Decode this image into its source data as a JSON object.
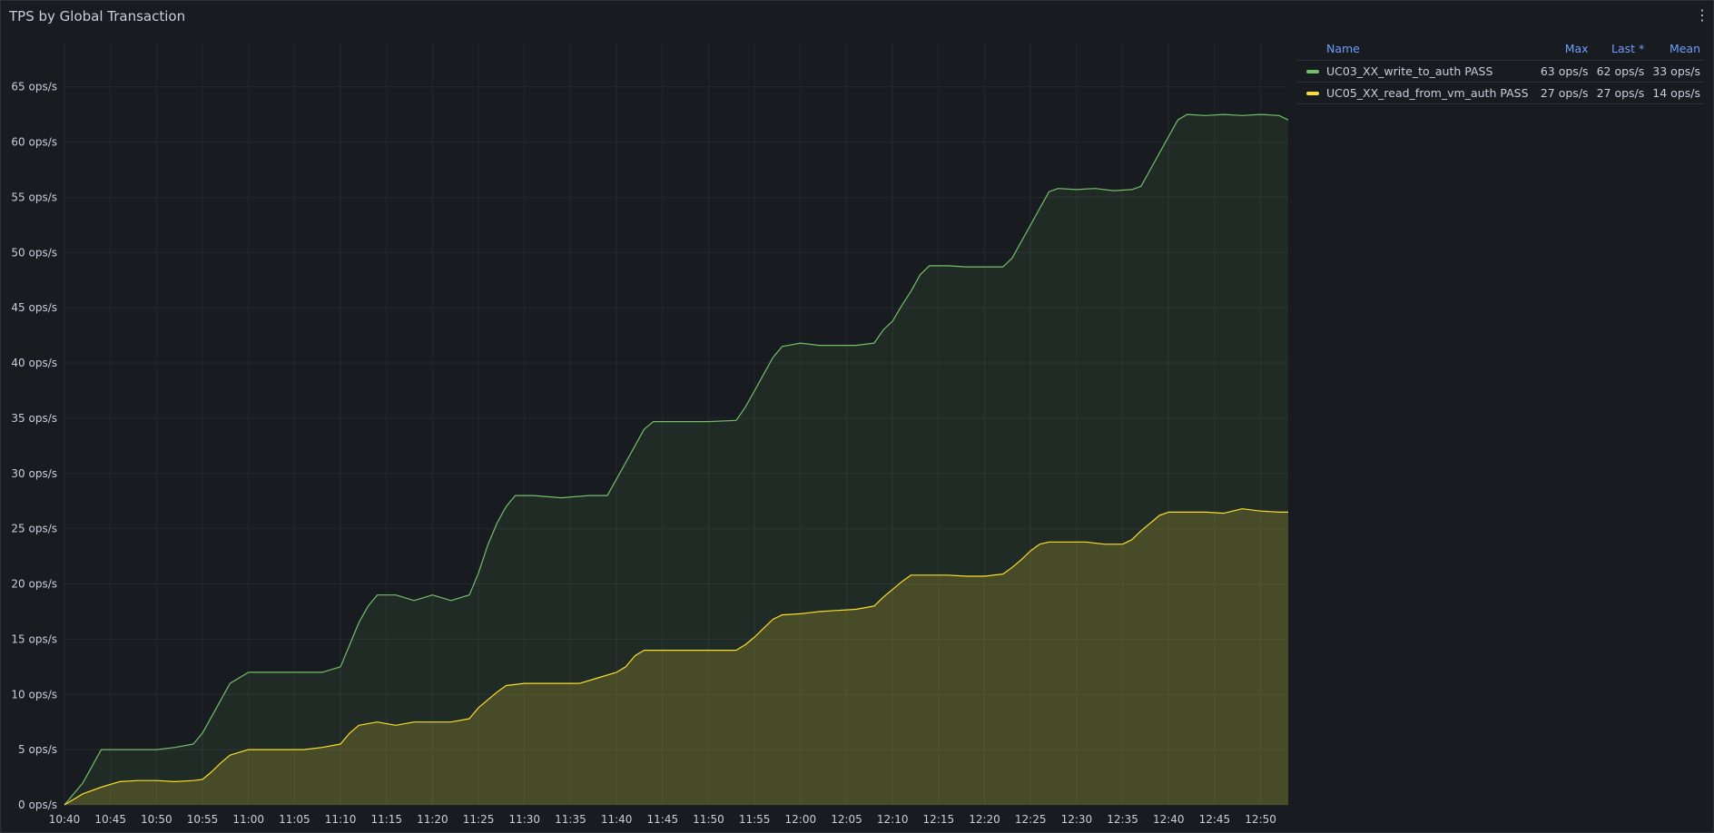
{
  "panel": {
    "title": "TPS by Global Transaction",
    "menu_icon": "⋮"
  },
  "legend": {
    "headers": {
      "name": "Name",
      "max": "Max",
      "last": "Last *",
      "mean": "Mean"
    },
    "rows": [
      {
        "name": "UC03_XX_write_to_auth PASS",
        "max": "63 ops/s",
        "last": "62 ops/s",
        "mean": "33 ops/s",
        "color": "#73bf69"
      },
      {
        "name": "UC05_XX_read_from_vm_auth PASS",
        "max": "27 ops/s",
        "last": "27 ops/s",
        "mean": "14 ops/s",
        "color": "#fade2a"
      }
    ]
  },
  "chart_data": {
    "type": "area",
    "title": "TPS by Global Transaction",
    "xlabel": "",
    "ylabel": "",
    "unit": "ops/s",
    "ylim": [
      0,
      69
    ],
    "xlim": [
      "10:40",
      "12:53"
    ],
    "grid": true,
    "legend_placement": "right",
    "y_ticks": [
      "0 ops/s",
      "5 ops/s",
      "10 ops/s",
      "15 ops/s",
      "20 ops/s",
      "25 ops/s",
      "30 ops/s",
      "35 ops/s",
      "40 ops/s",
      "45 ops/s",
      "50 ops/s",
      "55 ops/s",
      "60 ops/s",
      "65 ops/s"
    ],
    "y_tick_values": [
      0,
      5,
      10,
      15,
      20,
      25,
      30,
      35,
      40,
      45,
      50,
      55,
      60,
      65
    ],
    "x_ticks": [
      "10:40",
      "10:45",
      "10:50",
      "10:55",
      "11:00",
      "11:05",
      "11:10",
      "11:15",
      "11:20",
      "11:25",
      "11:30",
      "11:35",
      "11:40",
      "11:45",
      "11:50",
      "11:55",
      "12:00",
      "12:05",
      "12:10",
      "12:15",
      "12:20",
      "12:25",
      "12:30",
      "12:35",
      "12:40",
      "12:45",
      "12:50"
    ],
    "series": [
      {
        "name": "UC03_XX_write_to_auth PASS",
        "color": "#73bf69",
        "points": [
          [
            "10:40",
            0
          ],
          [
            "10:42",
            2
          ],
          [
            "10:43",
            3.5
          ],
          [
            "10:44",
            5
          ],
          [
            "10:46",
            5
          ],
          [
            "10:48",
            5
          ],
          [
            "10:50",
            5
          ],
          [
            "10:52",
            5.2
          ],
          [
            "10:54",
            5.5
          ],
          [
            "10:55",
            6.5
          ],
          [
            "10:56",
            8
          ],
          [
            "10:57",
            9.5
          ],
          [
            "10:58",
            11
          ],
          [
            "11:00",
            12
          ],
          [
            "11:02",
            12
          ],
          [
            "11:04",
            12
          ],
          [
            "11:06",
            12
          ],
          [
            "11:08",
            12
          ],
          [
            "11:10",
            12.5
          ],
          [
            "11:11",
            14.5
          ],
          [
            "11:12",
            16.5
          ],
          [
            "11:13",
            18
          ],
          [
            "11:14",
            19
          ],
          [
            "11:16",
            19
          ],
          [
            "11:18",
            18.5
          ],
          [
            "11:20",
            19
          ],
          [
            "11:22",
            18.5
          ],
          [
            "11:24",
            19
          ],
          [
            "11:25",
            21
          ],
          [
            "11:26",
            23.5
          ],
          [
            "11:27",
            25.5
          ],
          [
            "11:28",
            27
          ],
          [
            "11:29",
            28
          ],
          [
            "11:31",
            28
          ],
          [
            "11:34",
            27.8
          ],
          [
            "11:37",
            28
          ],
          [
            "11:39",
            28
          ],
          [
            "11:40",
            29.5
          ],
          [
            "11:41",
            31
          ],
          [
            "11:42",
            32.5
          ],
          [
            "11:43",
            34
          ],
          [
            "11:44",
            34.7
          ],
          [
            "11:46",
            34.7
          ],
          [
            "11:48",
            34.7
          ],
          [
            "11:50",
            34.7
          ],
          [
            "11:53",
            34.8
          ],
          [
            "11:54",
            36
          ],
          [
            "11:55",
            37.5
          ],
          [
            "11:56",
            39
          ],
          [
            "11:57",
            40.5
          ],
          [
            "11:58",
            41.5
          ],
          [
            "12:00",
            41.8
          ],
          [
            "12:02",
            41.6
          ],
          [
            "12:04",
            41.6
          ],
          [
            "12:06",
            41.6
          ],
          [
            "12:08",
            41.8
          ],
          [
            "12:09",
            43
          ],
          [
            "12:10",
            43.8
          ],
          [
            "12:11",
            45.2
          ],
          [
            "12:12",
            46.5
          ],
          [
            "12:13",
            48
          ],
          [
            "12:14",
            48.8
          ],
          [
            "12:16",
            48.8
          ],
          [
            "12:18",
            48.7
          ],
          [
            "12:20",
            48.7
          ],
          [
            "12:22",
            48.7
          ],
          [
            "12:23",
            49.5
          ],
          [
            "12:24",
            51
          ],
          [
            "12:25",
            52.5
          ],
          [
            "12:26",
            54
          ],
          [
            "12:27",
            55.5
          ],
          [
            "12:28",
            55.8
          ],
          [
            "12:30",
            55.7
          ],
          [
            "12:32",
            55.8
          ],
          [
            "12:34",
            55.6
          ],
          [
            "12:36",
            55.7
          ],
          [
            "12:37",
            56
          ],
          [
            "12:38",
            57.5
          ],
          [
            "12:39",
            59
          ],
          [
            "12:40",
            60.5
          ],
          [
            "12:41",
            62
          ],
          [
            "12:42",
            62.5
          ],
          [
            "12:44",
            62.4
          ],
          [
            "12:46",
            62.5
          ],
          [
            "12:48",
            62.4
          ],
          [
            "12:50",
            62.5
          ],
          [
            "12:52",
            62.4
          ],
          [
            "12:53",
            62
          ]
        ]
      },
      {
        "name": "UC05_XX_read_from_vm_auth PASS",
        "color": "#fade2a",
        "points": [
          [
            "10:40",
            0
          ],
          [
            "10:42",
            1
          ],
          [
            "10:44",
            1.6
          ],
          [
            "10:46",
            2.1
          ],
          [
            "10:48",
            2.2
          ],
          [
            "10:50",
            2.2
          ],
          [
            "10:52",
            2.1
          ],
          [
            "10:54",
            2.2
          ],
          [
            "10:55",
            2.3
          ],
          [
            "10:56",
            3
          ],
          [
            "10:57",
            3.8
          ],
          [
            "10:58",
            4.5
          ],
          [
            "11:00",
            5
          ],
          [
            "11:02",
            5
          ],
          [
            "11:04",
            5
          ],
          [
            "11:06",
            5
          ],
          [
            "11:08",
            5.2
          ],
          [
            "11:10",
            5.5
          ],
          [
            "11:11",
            6.5
          ],
          [
            "11:12",
            7.2
          ],
          [
            "11:14",
            7.5
          ],
          [
            "11:16",
            7.2
          ],
          [
            "11:18",
            7.5
          ],
          [
            "11:20",
            7.5
          ],
          [
            "11:22",
            7.5
          ],
          [
            "11:24",
            7.8
          ],
          [
            "11:25",
            8.8
          ],
          [
            "11:26",
            9.5
          ],
          [
            "11:27",
            10.2
          ],
          [
            "11:28",
            10.8
          ],
          [
            "11:30",
            11
          ],
          [
            "11:32",
            11
          ],
          [
            "11:34",
            11
          ],
          [
            "11:36",
            11
          ],
          [
            "11:38",
            11.5
          ],
          [
            "11:40",
            12
          ],
          [
            "11:41",
            12.5
          ],
          [
            "11:42",
            13.5
          ],
          [
            "11:43",
            14
          ],
          [
            "11:45",
            14
          ],
          [
            "11:47",
            14
          ],
          [
            "11:49",
            14
          ],
          [
            "11:51",
            14
          ],
          [
            "11:53",
            14
          ],
          [
            "11:54",
            14.5
          ],
          [
            "11:55",
            15.2
          ],
          [
            "11:56",
            16
          ],
          [
            "11:57",
            16.8
          ],
          [
            "11:58",
            17.2
          ],
          [
            "12:00",
            17.3
          ],
          [
            "12:02",
            17.5
          ],
          [
            "12:04",
            17.6
          ],
          [
            "12:06",
            17.7
          ],
          [
            "12:08",
            18
          ],
          [
            "12:09",
            18.8
          ],
          [
            "12:10",
            19.5
          ],
          [
            "12:11",
            20.2
          ],
          [
            "12:12",
            20.8
          ],
          [
            "12:14",
            20.8
          ],
          [
            "12:16",
            20.8
          ],
          [
            "12:18",
            20.7
          ],
          [
            "12:20",
            20.7
          ],
          [
            "12:22",
            20.9
          ],
          [
            "12:23",
            21.5
          ],
          [
            "12:24",
            22.2
          ],
          [
            "12:25",
            23
          ],
          [
            "12:26",
            23.6
          ],
          [
            "12:27",
            23.8
          ],
          [
            "12:29",
            23.8
          ],
          [
            "12:31",
            23.8
          ],
          [
            "12:33",
            23.6
          ],
          [
            "12:35",
            23.6
          ],
          [
            "12:36",
            24
          ],
          [
            "12:37",
            24.8
          ],
          [
            "12:38",
            25.5
          ],
          [
            "12:39",
            26.2
          ],
          [
            "12:40",
            26.5
          ],
          [
            "12:42",
            26.5
          ],
          [
            "12:44",
            26.5
          ],
          [
            "12:46",
            26.4
          ],
          [
            "12:48",
            26.8
          ],
          [
            "12:50",
            26.6
          ],
          [
            "12:52",
            26.5
          ],
          [
            "12:53",
            26.5
          ]
        ]
      }
    ]
  }
}
